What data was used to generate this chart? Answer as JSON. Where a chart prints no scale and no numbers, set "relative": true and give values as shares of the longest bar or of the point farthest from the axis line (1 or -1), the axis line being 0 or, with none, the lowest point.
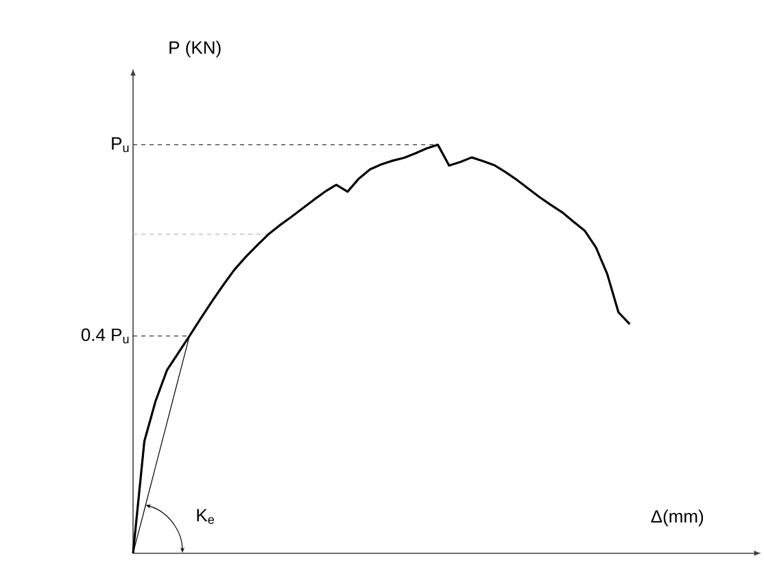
{
  "chart_data": {
    "type": "line",
    "xlabel": "Δ(mm)",
    "ylabel": "P (KN)",
    "annotations": [
      "K$_{e}$"
    ],
    "relative": true,
    "categories": [
      null,
      null,
      null,
      null,
      null,
      null,
      null,
      null,
      null,
      null,
      null,
      null,
      null,
      null,
      null,
      null,
      null,
      null,
      null,
      null,
      null,
      null,
      null,
      null,
      null,
      null,
      null,
      null,
      null,
      null,
      null,
      null,
      null,
      null,
      null,
      null,
      null,
      null,
      null,
      null,
      null,
      null,
      null,
      null,
      null
    ],
    "series": [
      {
        "color": "#000000",
        "values": [
          0,
          0.274,
          0.373,
          0.448,
          0.49,
          0.532,
          0.575,
          0.617,
          0.657,
          0.695,
          0.726,
          0.754,
          0.781,
          0.803,
          0.823,
          0.844,
          0.865,
          0.885,
          0.902,
          0.885,
          0.917,
          0.94,
          0.952,
          0.961,
          0.968,
          0.979,
          0.991,
          1.0,
          0.949,
          0.958,
          0.969,
          0.96,
          0.95,
          0.933,
          0.914,
          0.893,
          0.872,
          0.853,
          0.835,
          0.812,
          0.79,
          0.749,
          0.684,
          0.59,
          0.561
        ]
      },
      {
        "color": "#000000",
        "values": [
          0,
          0.106,
          0.213,
          0.319,
          0.426,
          0.532,
          null,
          null,
          null,
          null,
          null,
          null,
          null,
          null,
          null,
          null,
          null,
          null,
          null,
          null,
          null,
          null,
          null,
          null,
          null,
          null,
          null,
          null,
          null,
          null,
          null,
          null,
          null,
          null,
          null,
          null,
          null,
          null,
          null,
          null,
          null,
          null,
          null,
          null,
          null
        ]
      }
    ],
    "ref_lines": [
      {
        "axis": "y",
        "value": 1,
        "label": "P$_{u}$",
        "color": "#333333",
        "line_style": "dashed"
      },
      {
        "axis": "y",
        "value": 0.781,
        "color": "#c0c0c0",
        "line_style": "dashed"
      },
      {
        "axis": "y",
        "value": 0.532,
        "label": "0.4 P$_{u}$",
        "color": "#333333",
        "line_style": "dashed"
      }
    ]
  }
}
